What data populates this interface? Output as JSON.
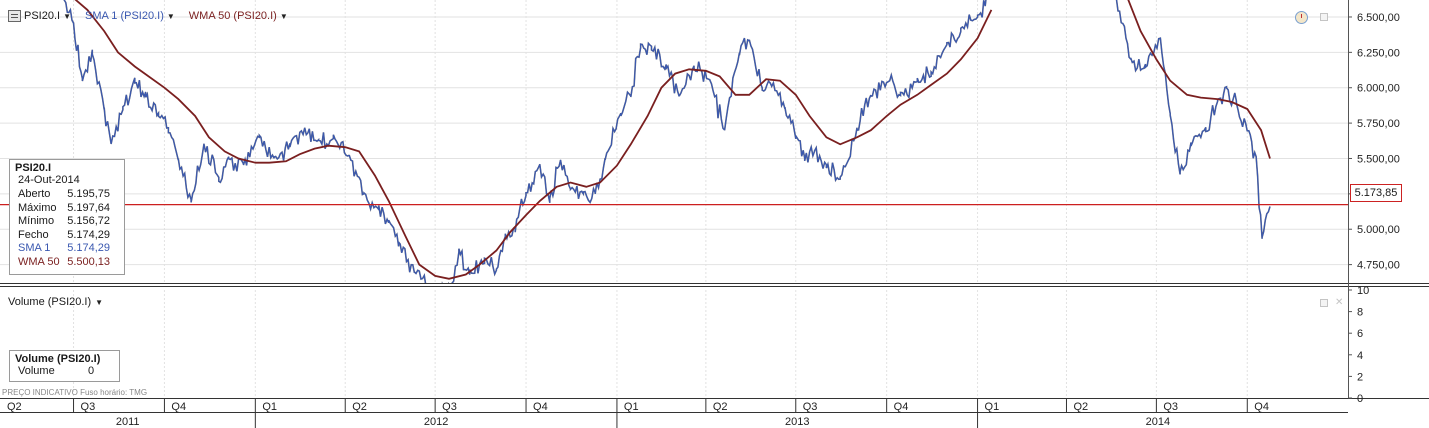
{
  "toolbar": {
    "symbol_label": "PSI20.I",
    "sma_label": "SMA 1 (PSI20.I)",
    "wma_label": "WMA 50 (PSI20.I)",
    "sma_color": "#3a58b0",
    "wma_color": "#7a1f1f"
  },
  "price_legend": {
    "title": "PSI20.I",
    "date": "24-Out-2014",
    "rows": [
      {
        "key": "Aberto",
        "value": "5.195,75"
      },
      {
        "key": "Máximo",
        "value": "5.197,64"
      },
      {
        "key": "Mínimo",
        "value": "5.156,72"
      },
      {
        "key": "Fecho",
        "value": "5.174,29"
      },
      {
        "key": "SMA 1",
        "value": "5.174,29"
      },
      {
        "key": "WMA 50",
        "value": "5.500,13"
      }
    ]
  },
  "last_price_label": "5.173,85",
  "volume_panel": {
    "title": "Volume (PSI20.I)",
    "legend_title": "Volume (PSI20.I)",
    "legend_key": "Volume",
    "legend_value": "0"
  },
  "footer": {
    "note": "PREÇO INDICATIVO    Fuso horário: TMG"
  },
  "chart_data": [
    {
      "type": "line",
      "panel": "price",
      "ylim": [
        4620,
        6620
      ],
      "y_ticks": [
        {
          "value": 4750,
          "label": "4.750,00"
        },
        {
          "value": 5000,
          "label": "5.000,00"
        },
        {
          "value": 5250,
          "label": "5.250,00"
        },
        {
          "value": 5500,
          "label": "5.500,00"
        },
        {
          "value": 5750,
          "label": "5.750,00"
        },
        {
          "value": 6000,
          "label": "6.000,00"
        },
        {
          "value": 6250,
          "label": "6.250,00"
        },
        {
          "value": 6500,
          "label": "6.500,00"
        }
      ],
      "last_price": 5173.85,
      "x_axis_quarters": [
        {
          "label": "Q2",
          "year": 2011,
          "q": 2
        },
        {
          "label": "Q3",
          "year": 2011,
          "q": 3
        },
        {
          "label": "Q4",
          "year": 2011,
          "q": 4
        },
        {
          "label": "Q1",
          "year": 2012,
          "q": 1
        },
        {
          "label": "Q2",
          "year": 2012,
          "q": 2
        },
        {
          "label": "Q3",
          "year": 2012,
          "q": 3
        },
        {
          "label": "Q4",
          "year": 2012,
          "q": 4
        },
        {
          "label": "Q1",
          "year": 2013,
          "q": 1
        },
        {
          "label": "Q2",
          "year": 2013,
          "q": 2
        },
        {
          "label": "Q3",
          "year": 2013,
          "q": 3
        },
        {
          "label": "Q4",
          "year": 2013,
          "q": 4
        },
        {
          "label": "Q1",
          "year": 2014,
          "q": 1
        },
        {
          "label": "Q2",
          "year": 2014,
          "q": 2
        },
        {
          "label": "Q3",
          "year": 2014,
          "q": 3
        },
        {
          "label": "Q4",
          "year": 2014,
          "q": 4
        }
      ],
      "x_axis_years": [
        "2011",
        "2012",
        "2013",
        "2014"
      ],
      "series": [
        {
          "name": "SMA 1 (PSI20.I)",
          "x": [
            "2011-06-20",
            "2011-07-01",
            "2011-07-10",
            "2011-07-20",
            "2011-08-01",
            "2011-08-08",
            "2011-08-20",
            "2011-09-01",
            "2011-09-12",
            "2011-09-25",
            "2011-10-05",
            "2011-10-15",
            "2011-10-28",
            "2011-11-10",
            "2011-11-25",
            "2011-12-05",
            "2011-12-20",
            "2012-01-05",
            "2012-01-20",
            "2012-02-05",
            "2012-02-20",
            "2012-03-05",
            "2012-03-20",
            "2012-04-05",
            "2012-04-20",
            "2012-05-05",
            "2012-05-15",
            "2012-05-25",
            "2012-06-10",
            "2012-06-25",
            "2012-07-05",
            "2012-07-18",
            "2012-07-25",
            "2012-08-05",
            "2012-08-20",
            "2012-09-01",
            "2012-09-10",
            "2012-09-20",
            "2012-10-01",
            "2012-10-15",
            "2012-10-25",
            "2012-11-05",
            "2012-11-15",
            "2012-11-28",
            "2012-12-10",
            "2012-12-20",
            "2013-01-05",
            "2013-01-15",
            "2013-01-25",
            "2013-02-05",
            "2013-02-20",
            "2013-03-05",
            "2013-03-20",
            "2013-04-05",
            "2013-04-20",
            "2013-05-05",
            "2013-05-15",
            "2013-05-28",
            "2013-06-05",
            "2013-06-20",
            "2013-07-01",
            "2013-07-10",
            "2013-07-20",
            "2013-08-01",
            "2013-08-15",
            "2013-09-01",
            "2013-09-15",
            "2013-10-01",
            "2013-10-15",
            "2013-11-01",
            "2013-11-15",
            "2013-12-01",
            "2013-12-15",
            "2014-01-01",
            "2014-01-15",
            "2014-05-20",
            "2014-06-05",
            "2014-06-20",
            "2014-07-05",
            "2014-07-15",
            "2014-07-25",
            "2014-08-05",
            "2014-08-20",
            "2014-09-01",
            "2014-09-10",
            "2014-09-20",
            "2014-10-01",
            "2014-10-10",
            "2014-10-16",
            "2014-10-24"
          ],
          "values": [
            6650,
            6450,
            6050,
            6250,
            5850,
            5600,
            5850,
            6050,
            5950,
            5800,
            5700,
            5500,
            5200,
            5600,
            5350,
            5500,
            5450,
            5650,
            5500,
            5600,
            5700,
            5620,
            5650,
            5520,
            5250,
            5150,
            5050,
            4900,
            4700,
            4600,
            4540,
            4600,
            4850,
            4700,
            4780,
            4700,
            4950,
            5000,
            5250,
            5450,
            5200,
            5500,
            5300,
            5250,
            5250,
            5500,
            5800,
            5950,
            6300,
            6280,
            6150,
            5950,
            6150,
            6050,
            5700,
            6250,
            6350,
            6000,
            6050,
            5850,
            5650,
            5500,
            5550,
            5450,
            5350,
            5700,
            5950,
            6050,
            5950,
            6050,
            6100,
            6300,
            6400,
            6500,
            6680,
            6680,
            6200,
            6150,
            6350,
            5800,
            5400,
            5600,
            5700,
            5900,
            6000,
            5900,
            5700,
            5500,
            4950,
            5180
          ]
        },
        {
          "name": "WMA 50 (PSI20.I)",
          "x": [
            "2011-06-20",
            "2011-07-15",
            "2011-08-01",
            "2011-08-15",
            "2011-09-01",
            "2011-09-15",
            "2011-10-01",
            "2011-10-15",
            "2011-11-01",
            "2011-11-15",
            "2011-12-01",
            "2011-12-15",
            "2012-01-01",
            "2012-01-15",
            "2012-02-01",
            "2012-02-15",
            "2012-03-01",
            "2012-03-15",
            "2012-04-01",
            "2012-04-15",
            "2012-05-01",
            "2012-05-15",
            "2012-06-01",
            "2012-06-15",
            "2012-07-01",
            "2012-07-15",
            "2012-08-01",
            "2012-08-15",
            "2012-09-01",
            "2012-09-15",
            "2012-10-01",
            "2012-10-15",
            "2012-11-01",
            "2012-11-15",
            "2012-12-01",
            "2012-12-15",
            "2013-01-01",
            "2013-01-15",
            "2013-02-01",
            "2013-02-15",
            "2013-03-01",
            "2013-03-15",
            "2013-04-01",
            "2013-04-15",
            "2013-05-01",
            "2013-05-15",
            "2013-06-01",
            "2013-06-15",
            "2013-07-01",
            "2013-07-15",
            "2013-08-01",
            "2013-08-15",
            "2013-09-01",
            "2013-09-15",
            "2013-10-01",
            "2013-10-15",
            "2013-11-01",
            "2013-11-15",
            "2013-12-01",
            "2013-12-15",
            "2014-01-01",
            "2014-01-15",
            "2014-06-01",
            "2014-06-15",
            "2014-07-01",
            "2014-07-15",
            "2014-08-01",
            "2014-08-15",
            "2014-09-01",
            "2014-09-15",
            "2014-10-01",
            "2014-10-15",
            "2014-10-24"
          ],
          "values": [
            6700,
            6550,
            6400,
            6250,
            6150,
            6080,
            6000,
            5920,
            5800,
            5650,
            5550,
            5500,
            5470,
            5470,
            5480,
            5530,
            5570,
            5590,
            5580,
            5550,
            5380,
            5200,
            4950,
            4750,
            4670,
            4650,
            4680,
            4750,
            4850,
            4980,
            5100,
            5200,
            5300,
            5330,
            5300,
            5330,
            5450,
            5600,
            5800,
            6000,
            6100,
            6130,
            6120,
            6080,
            5950,
            5950,
            6060,
            6050,
            5950,
            5800,
            5650,
            5600,
            5650,
            5700,
            5800,
            5880,
            5950,
            6020,
            6100,
            6200,
            6350,
            6550,
            6650,
            6400,
            6200,
            6050,
            5950,
            5930,
            5920,
            5900,
            5850,
            5700,
            5500
          ]
        }
      ]
    },
    {
      "type": "bar",
      "panel": "volume",
      "ylim": [
        0,
        10
      ],
      "y_ticks": [
        0,
        2,
        4,
        6,
        8,
        10
      ],
      "series": [
        {
          "name": "Volume",
          "values": [
            0
          ]
        }
      ]
    }
  ]
}
